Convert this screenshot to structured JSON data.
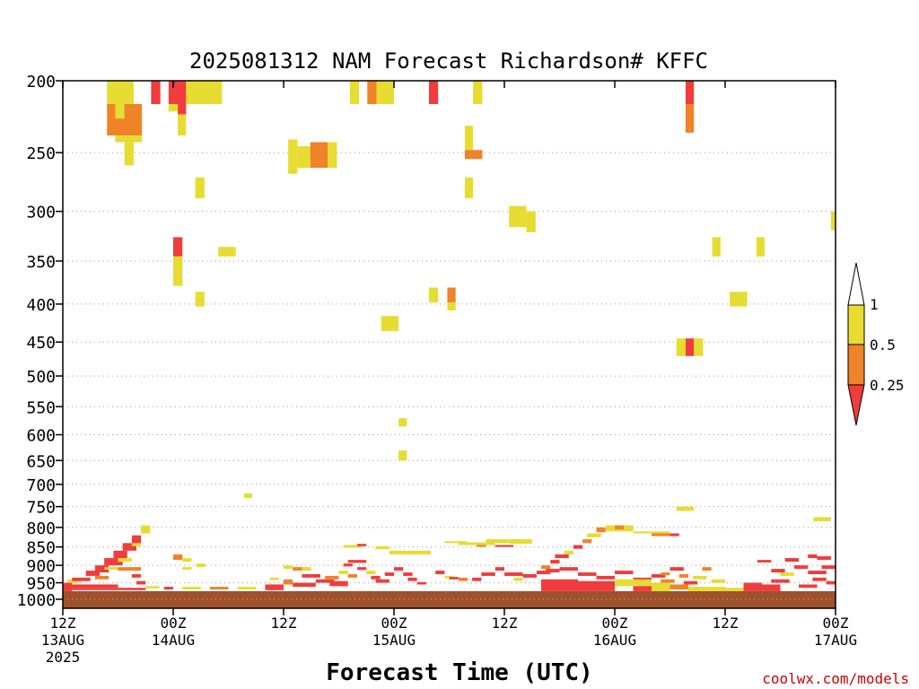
{
  "chart_data": {
    "type": "heatmap",
    "title": "2025081312 NAM Forecast Richardson# KFFC",
    "xlabel": "Forecast Time (UTC)",
    "credit": "coolwx.com/models",
    "y_axis": {
      "scale": "log",
      "range": [
        1000,
        200
      ],
      "ticks": [
        200,
        250,
        300,
        350,
        400,
        450,
        500,
        550,
        600,
        650,
        700,
        750,
        800,
        850,
        900,
        950,
        1000
      ]
    },
    "x_axis": {
      "range_hours": [
        0,
        84
      ],
      "ticks": [
        {
          "hour": 0,
          "line1": "12Z",
          "line2": "13AUG",
          "line3": "2025"
        },
        {
          "hour": 12,
          "line1": "00Z",
          "line2": "14AUG"
        },
        {
          "hour": 24,
          "line1": "12Z"
        },
        {
          "hour": 36,
          "line1": "00Z",
          "line2": "15AUG"
        },
        {
          "hour": 48,
          "line1": "12Z"
        },
        {
          "hour": 60,
          "line1": "00Z",
          "line2": "16AUG"
        },
        {
          "hour": 72,
          "line1": "12Z"
        },
        {
          "hour": 84,
          "line1": "00Z",
          "line2": "17AUG"
        }
      ],
      "grid": "horizontal dotted at pressure ticks"
    },
    "legend": {
      "placement": "right",
      "colors": {
        "lt_025": "#f03c3c",
        "b025_05": "#f08228",
        "b05_1": "#e6dc32",
        "gt_1": "#ffffff"
      },
      "labels": [
        "1",
        "0.5",
        "0.25"
      ]
    },
    "ground_color": "#a0522d",
    "ground_pressure": 975,
    "cells": [
      [
        4.8,
        7.7,
        200,
        215,
        2
      ],
      [
        4.8,
        8.6,
        215,
        237,
        1
      ],
      [
        5.7,
        6.7,
        215,
        225,
        2
      ],
      [
        5.7,
        8.6,
        237,
        242,
        2
      ],
      [
        6.7,
        7.7,
        242,
        260,
        2
      ],
      [
        9.6,
        10.6,
        200,
        215,
        0
      ],
      [
        11.5,
        13.4,
        200,
        215,
        0
      ],
      [
        13.4,
        17.3,
        200,
        215,
        2
      ],
      [
        11.5,
        12.5,
        215,
        220,
        2
      ],
      [
        12.5,
        13.4,
        215,
        222,
        0
      ],
      [
        12.5,
        13.4,
        222,
        237,
        2
      ],
      [
        14.4,
        15.4,
        270,
        288,
        2
      ],
      [
        12,
        13,
        325,
        345,
        0
      ],
      [
        12,
        13,
        345,
        378,
        2
      ],
      [
        16.9,
        18.8,
        335,
        345,
        2
      ],
      [
        14.4,
        15.4,
        385,
        403,
        2
      ],
      [
        24.5,
        25.5,
        240,
        267,
        2
      ],
      [
        25.5,
        26.9,
        245,
        262,
        2
      ],
      [
        26.9,
        28.8,
        242,
        262,
        1
      ],
      [
        28.8,
        29.8,
        242,
        262,
        2
      ],
      [
        19.7,
        20.6,
        720,
        730,
        2
      ],
      [
        31.2,
        32.2,
        200,
        215,
        2
      ],
      [
        33.1,
        34.1,
        200,
        215,
        1
      ],
      [
        34.1,
        36,
        200,
        215,
        2
      ],
      [
        39.8,
        40.8,
        200,
        215,
        0
      ],
      [
        44.6,
        45.6,
        200,
        215,
        2
      ],
      [
        43.7,
        44.6,
        230,
        248,
        2
      ],
      [
        43.7,
        45.6,
        248,
        255,
        1
      ],
      [
        43.7,
        44.6,
        270,
        288,
        2
      ],
      [
        39.8,
        40.8,
        380,
        398,
        2
      ],
      [
        41.8,
        42.7,
        380,
        398,
        1
      ],
      [
        41.8,
        42.7,
        398,
        408,
        2
      ],
      [
        34.6,
        36.5,
        415,
        435,
        2
      ],
      [
        36.5,
        37.4,
        570,
        585,
        2
      ],
      [
        36.5,
        37.4,
        630,
        650,
        2
      ],
      [
        48.5,
        50.4,
        295,
        315,
        2
      ],
      [
        50.4,
        51.4,
        300,
        320,
        2
      ],
      [
        67.7,
        68.6,
        200,
        215,
        0
      ],
      [
        67.7,
        68.6,
        215,
        235,
        1
      ],
      [
        70.6,
        71.5,
        325,
        345,
        2
      ],
      [
        75.4,
        76.3,
        325,
        345,
        2
      ],
      [
        72.5,
        74.4,
        385,
        403,
        2
      ],
      [
        66.7,
        67.7,
        445,
        470,
        2
      ],
      [
        67.7,
        68.6,
        445,
        470,
        0
      ],
      [
        68.6,
        69.6,
        445,
        470,
        2
      ],
      [
        66.7,
        68.6,
        750,
        760,
        2
      ],
      [
        81.6,
        83.5,
        775,
        785,
        2
      ],
      [
        83.5,
        84,
        300,
        318,
        2
      ],
      [
        0,
        1,
        950,
        975,
        0
      ],
      [
        0.5,
        2,
        940,
        950,
        2
      ],
      [
        1,
        3,
        935,
        945,
        0
      ],
      [
        2.5,
        4,
        915,
        930,
        0
      ],
      [
        3.5,
        5,
        900,
        920,
        0
      ],
      [
        4.5,
        6.5,
        880,
        900,
        0
      ],
      [
        5.5,
        7,
        860,
        880,
        0
      ],
      [
        6.5,
        8,
        840,
        860,
        0
      ],
      [
        7.5,
        8.5,
        820,
        840,
        0
      ],
      [
        8.5,
        9.5,
        795,
        815,
        2
      ],
      [
        7.5,
        8.5,
        840,
        848,
        2
      ],
      [
        6,
        7.5,
        880,
        890,
        2
      ],
      [
        4.5,
        6,
        905,
        912,
        2
      ],
      [
        3.5,
        5,
        930,
        940,
        1
      ],
      [
        0,
        6,
        955,
        965,
        0
      ],
      [
        1,
        9,
        965,
        972,
        0
      ],
      [
        6,
        8.5,
        905,
        915,
        1
      ],
      [
        7.5,
        8.5,
        925,
        935,
        0
      ],
      [
        8,
        9,
        945,
        955,
        0
      ],
      [
        9,
        10.5,
        960,
        967,
        2
      ],
      [
        12,
        13,
        870,
        885,
        1
      ],
      [
        13,
        14,
        880,
        890,
        2
      ],
      [
        14.5,
        15.5,
        895,
        905,
        2
      ],
      [
        13,
        14,
        905,
        912,
        2
      ],
      [
        11,
        12,
        962,
        970,
        0
      ],
      [
        13,
        15,
        962,
        970,
        2
      ],
      [
        16,
        18,
        962,
        970,
        1
      ],
      [
        19,
        21,
        962,
        970,
        2
      ],
      [
        22,
        24,
        955,
        972,
        0
      ],
      [
        24,
        25,
        940,
        955,
        1
      ],
      [
        24,
        25,
        900,
        910,
        2
      ],
      [
        25,
        26,
        905,
        915,
        1
      ],
      [
        26,
        27,
        905,
        915,
        2
      ],
      [
        22.5,
        23.5,
        935,
        942,
        2
      ],
      [
        25,
        27.5,
        950,
        962,
        0
      ],
      [
        26,
        28,
        925,
        935,
        0
      ],
      [
        27.5,
        29.5,
        940,
        950,
        0
      ],
      [
        28.5,
        30,
        930,
        940,
        1
      ],
      [
        29,
        31,
        945,
        960,
        0
      ],
      [
        30,
        31,
        915,
        925,
        2
      ],
      [
        30.5,
        31.5,
        895,
        903,
        0
      ],
      [
        31,
        33,
        885,
        893,
        0
      ],
      [
        31,
        32,
        925,
        935,
        1
      ],
      [
        32,
        33,
        905,
        913,
        0
      ],
      [
        33,
        34,
        915,
        925,
        2
      ],
      [
        33.5,
        34.5,
        930,
        940,
        0
      ],
      [
        34,
        35.5,
        940,
        950,
        0
      ],
      [
        35,
        36,
        920,
        930,
        0
      ],
      [
        36,
        37,
        905,
        915,
        0
      ],
      [
        37,
        38,
        920,
        930,
        0
      ],
      [
        37.5,
        38.5,
        935,
        945,
        0
      ],
      [
        38.5,
        39.5,
        948,
        955,
        0
      ],
      [
        30.5,
        32.5,
        845,
        852,
        2
      ],
      [
        32,
        33,
        842,
        848,
        0
      ],
      [
        34,
        35.5,
        848,
        856,
        2
      ],
      [
        35.5,
        36,
        860,
        870,
        2
      ],
      [
        36,
        40,
        860,
        870,
        2
      ],
      [
        40.5,
        41.5,
        915,
        925,
        0
      ],
      [
        41.5,
        42.5,
        930,
        937,
        2
      ],
      [
        42,
        43,
        933,
        940,
        0
      ],
      [
        43,
        44,
        935,
        945,
        1
      ],
      [
        44.5,
        45.5,
        935,
        945,
        0
      ],
      [
        45.5,
        47,
        920,
        930,
        0
      ],
      [
        47,
        48,
        905,
        915,
        0
      ],
      [
        48,
        50,
        920,
        930,
        0
      ],
      [
        49,
        50,
        935,
        945,
        2
      ],
      [
        50,
        51.5,
        925,
        935,
        0
      ],
      [
        51.5,
        53,
        915,
        925,
        0
      ],
      [
        52,
        53,
        900,
        910,
        1
      ],
      [
        53,
        54,
        885,
        895,
        0
      ],
      [
        53.5,
        55,
        870,
        880,
        0
      ],
      [
        54.5,
        55.5,
        860,
        870,
        2
      ],
      [
        55.5,
        56.5,
        845,
        855,
        0
      ],
      [
        56.5,
        57.5,
        830,
        840,
        1
      ],
      [
        57,
        58.5,
        815,
        825,
        2
      ],
      [
        58,
        59,
        800,
        812,
        1
      ],
      [
        59,
        62,
        795,
        810,
        2
      ],
      [
        60,
        61,
        795,
        805,
        1
      ],
      [
        62,
        66,
        810,
        815,
        2
      ],
      [
        64,
        66,
        815,
        822,
        1
      ],
      [
        66,
        67,
        815,
        822,
        0
      ],
      [
        41.5,
        44,
        835,
        840,
        2
      ],
      [
        43,
        47,
        838,
        845,
        2
      ],
      [
        46,
        48.5,
        830,
        840,
        2
      ],
      [
        45,
        46,
        845,
        850,
        1
      ],
      [
        47,
        49,
        845,
        850,
        0
      ],
      [
        48.5,
        51,
        830,
        842,
        2
      ],
      [
        52.5,
        54,
        910,
        920,
        0
      ],
      [
        54,
        56,
        905,
        915,
        0
      ],
      [
        56,
        58,
        920,
        930,
        0
      ],
      [
        58,
        60,
        930,
        940,
        0
      ],
      [
        60,
        62,
        915,
        925,
        0
      ],
      [
        62,
        64,
        935,
        945,
        0
      ],
      [
        64,
        65.5,
        925,
        935,
        0
      ],
      [
        65,
        66.5,
        940,
        950,
        1
      ],
      [
        65,
        66,
        920,
        928,
        1
      ],
      [
        66,
        67.5,
        905,
        915,
        0
      ],
      [
        67,
        68,
        925,
        935,
        1
      ],
      [
        67.5,
        69,
        945,
        955,
        0
      ],
      [
        68.5,
        70,
        930,
        940,
        2
      ],
      [
        69.5,
        70.5,
        905,
        915,
        1
      ],
      [
        70.5,
        72,
        940,
        950,
        2
      ],
      [
        52,
        56,
        940,
        975,
        0
      ],
      [
        56,
        60,
        945,
        975,
        0
      ],
      [
        60,
        64,
        940,
        960,
        2
      ],
      [
        62,
        64,
        960,
        975,
        0
      ],
      [
        64,
        66,
        950,
        975,
        2
      ],
      [
        66,
        68,
        955,
        970,
        1
      ],
      [
        68,
        72,
        962,
        975,
        2
      ],
      [
        72,
        74,
        965,
        975,
        2
      ],
      [
        74,
        76,
        950,
        975,
        0
      ],
      [
        76,
        78,
        955,
        975,
        0
      ],
      [
        77,
        79,
        940,
        950,
        0
      ],
      [
        78,
        79.5,
        920,
        930,
        2
      ],
      [
        79.5,
        81,
        900,
        910,
        0
      ],
      [
        81,
        83,
        915,
        925,
        0
      ],
      [
        82.5,
        84,
        900,
        910,
        0
      ],
      [
        81.5,
        83,
        935,
        945,
        0
      ],
      [
        80,
        82,
        955,
        965,
        0
      ],
      [
        83,
        84,
        945,
        955,
        0
      ],
      [
        78.5,
        80,
        880,
        890,
        0
      ],
      [
        81,
        82,
        870,
        880,
        0
      ],
      [
        82,
        83.5,
        875,
        885,
        0
      ],
      [
        75.5,
        77,
        885,
        892,
        0
      ],
      [
        77,
        78.5,
        910,
        920,
        0
      ]
    ]
  }
}
